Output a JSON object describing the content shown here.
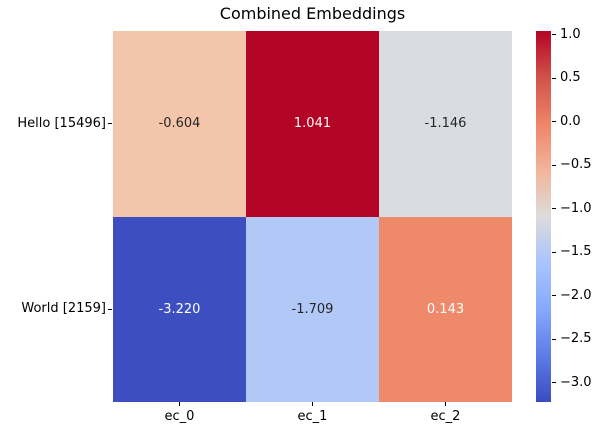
{
  "title": "Combined Embeddings",
  "chart_data": {
    "type": "heatmap",
    "title": "Combined Embeddings",
    "rows": [
      "Hello [15496]",
      "World [2159]"
    ],
    "columns": [
      "ec_0",
      "ec_1",
      "ec_2"
    ],
    "values": [
      [
        -0.604,
        1.041,
        -1.146
      ],
      [
        -3.22,
        -1.709,
        0.143
      ]
    ],
    "value_labels": [
      [
        "-0.604",
        "1.041",
        "-1.146"
      ],
      [
        "-3.220",
        "-1.709",
        "0.143"
      ]
    ],
    "cell_colors": [
      [
        "#f3c5ab",
        "#b40426",
        "#d9dce0"
      ],
      [
        "#3d4ec1",
        "#b2c8f7",
        "#ee8a6a"
      ]
    ],
    "cell_text_colors": [
      [
        "#262626",
        "#ffffff",
        "#262626"
      ],
      [
        "#ffffff",
        "#262626",
        "#ffffff"
      ]
    ],
    "colormap": "coolwarm",
    "colormap_gradient_top_to_bottom": [
      "#b40426",
      "#d0524a",
      "#ee8468",
      "#f2b49b",
      "#dcdcdb",
      "#aac4fd",
      "#86a9fc",
      "#5d7ce6",
      "#3b4cc0"
    ],
    "vmin": -3.22,
    "vmax": 1.041,
    "colorbar_ticks": [
      1.0,
      0.5,
      0.0,
      -0.5,
      -1.0,
      -1.5,
      -2.0,
      -2.5,
      -3.0
    ],
    "colorbar_tick_labels": [
      "1.0",
      "0.5",
      "0.0",
      "−0.5",
      "−1.0",
      "−1.5",
      "−2.0",
      "−2.5",
      "−3.0"
    ],
    "grid": false,
    "legend_position": "right-colorbar"
  }
}
